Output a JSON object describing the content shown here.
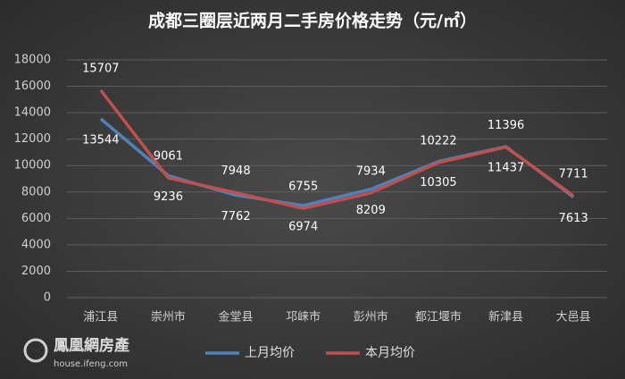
{
  "chart_data": {
    "type": "line",
    "title": "成都三圈层近两月二手房价格走势（元/㎡）",
    "categories": [
      "浦江县",
      "崇州市",
      "金堂县",
      "邛崃市",
      "彭州市",
      "都江堰市",
      "新津县",
      "大邑县"
    ],
    "series": [
      {
        "name": "上月均价",
        "color": "#4f81bd",
        "values": [
          13544,
          9236,
          7762,
          6974,
          8209,
          10305,
          11437,
          7613
        ]
      },
      {
        "name": "本月均价",
        "color": "#c0504d",
        "values": [
          15707,
          9061,
          7948,
          6755,
          7934,
          10222,
          11396,
          7711
        ]
      }
    ],
    "ylim": [
      0,
      18000
    ],
    "yticks": [
      0,
      2000,
      4000,
      6000,
      8000,
      10000,
      12000,
      14000,
      16000,
      18000
    ],
    "grid": true,
    "watermark": {
      "brand": "鳳凰網房產",
      "url": "house.ifeng.com"
    }
  }
}
